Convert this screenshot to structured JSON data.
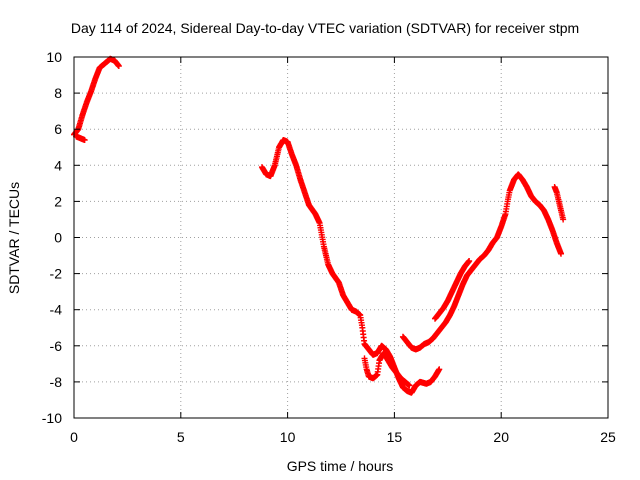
{
  "chart_data": {
    "type": "scatter",
    "title": "Day 114 of 2024, Sidereal Day-to-day VTEC variation (SDTVAR) for receiver stpm",
    "xlabel": "GPS time / hours",
    "ylabel": "SDTVAR / TECUs",
    "xlim": [
      0,
      25
    ],
    "ylim": [
      -10,
      10
    ],
    "xticks": [
      0,
      5,
      10,
      15,
      20,
      25
    ],
    "yticks": [
      -10,
      -8,
      -6,
      -4,
      -2,
      0,
      2,
      4,
      6,
      8,
      10
    ],
    "grid": true,
    "marker": "plus",
    "series": [
      {
        "name": "SDTVAR",
        "color": "#ff0000",
        "segments": [
          [
            [
              0.0,
              5.7
            ],
            [
              0.2,
              6.0
            ],
            [
              0.4,
              6.8
            ],
            [
              0.6,
              7.5
            ],
            [
              0.8,
              8.1
            ],
            [
              1.0,
              8.8
            ],
            [
              1.2,
              9.4
            ],
            [
              1.5,
              9.7
            ],
            [
              1.7,
              9.9
            ],
            [
              1.9,
              9.8
            ],
            [
              2.1,
              9.5
            ]
          ],
          [
            [
              0.1,
              5.6
            ],
            [
              0.3,
              5.5
            ],
            [
              0.5,
              5.4
            ]
          ],
          [
            [
              8.8,
              3.9
            ],
            [
              9.0,
              3.5
            ],
            [
              9.2,
              3.4
            ],
            [
              9.4,
              4.0
            ],
            [
              9.6,
              5.0
            ],
            [
              9.8,
              5.4
            ],
            [
              10.0,
              5.3
            ],
            [
              10.2,
              4.6
            ],
            [
              10.4,
              4.0
            ],
            [
              10.6,
              3.2
            ],
            [
              10.8,
              2.5
            ],
            [
              11.0,
              1.8
            ],
            [
              11.3,
              1.3
            ],
            [
              11.5,
              0.8
            ],
            [
              11.7,
              -0.5
            ],
            [
              11.9,
              -1.5
            ],
            [
              12.1,
              -2.0
            ],
            [
              12.4,
              -2.5
            ],
            [
              12.6,
              -3.2
            ],
            [
              12.8,
              -3.6
            ],
            [
              13.0,
              -4.0
            ],
            [
              13.2,
              -4.1
            ],
            [
              13.4,
              -4.3
            ],
            [
              13.5,
              -5.0
            ],
            [
              13.6,
              -5.9
            ],
            [
              13.8,
              -6.2
            ],
            [
              14.0,
              -6.5
            ],
            [
              14.2,
              -6.4
            ],
            [
              14.4,
              -6.0
            ],
            [
              14.6,
              -6.2
            ],
            [
              14.8,
              -6.6
            ],
            [
              15.0,
              -7.2
            ],
            [
              15.2,
              -7.8
            ],
            [
              15.4,
              -8.3
            ],
            [
              15.6,
              -8.5
            ],
            [
              15.8,
              -8.6
            ],
            [
              16.0,
              -8.2
            ],
            [
              16.2,
              -8.0
            ],
            [
              16.5,
              -8.1
            ],
            [
              16.7,
              -8.0
            ],
            [
              16.9,
              -7.7
            ],
            [
              17.1,
              -7.3
            ]
          ],
          [
            [
              13.6,
              -6.7
            ],
            [
              13.7,
              -7.3
            ],
            [
              13.8,
              -7.7
            ],
            [
              14.0,
              -7.8
            ],
            [
              14.2,
              -7.6
            ],
            [
              14.3,
              -6.8
            ],
            [
              14.5,
              -6.4
            ],
            [
              14.7,
              -6.8
            ],
            [
              14.9,
              -7.2
            ],
            [
              15.1,
              -7.5
            ],
            [
              15.3,
              -7.8
            ],
            [
              15.5,
              -8.0
            ],
            [
              15.7,
              -8.2
            ]
          ],
          [
            [
              15.4,
              -5.5
            ],
            [
              15.6,
              -5.8
            ],
            [
              15.8,
              -6.1
            ],
            [
              16.0,
              -6.2
            ],
            [
              16.2,
              -6.1
            ],
            [
              16.4,
              -5.9
            ],
            [
              16.6,
              -5.8
            ],
            [
              16.8,
              -5.6
            ],
            [
              17.0,
              -5.3
            ],
            [
              17.2,
              -5.0
            ],
            [
              17.4,
              -4.7
            ],
            [
              17.6,
              -4.3
            ],
            [
              17.8,
              -3.8
            ],
            [
              18.0,
              -3.2
            ],
            [
              18.2,
              -2.6
            ],
            [
              18.4,
              -2.1
            ],
            [
              18.6,
              -1.8
            ],
            [
              18.8,
              -1.5
            ],
            [
              19.0,
              -1.2
            ],
            [
              19.2,
              -1.0
            ],
            [
              19.4,
              -0.7
            ],
            [
              19.6,
              -0.3
            ],
            [
              19.8,
              0.0
            ],
            [
              20.0,
              0.6
            ],
            [
              20.2,
              1.3
            ],
            [
              20.3,
              2.0
            ],
            [
              20.4,
              2.6
            ],
            [
              20.6,
              3.2
            ],
            [
              20.8,
              3.5
            ],
            [
              21.0,
              3.2
            ],
            [
              21.2,
              2.8
            ],
            [
              21.4,
              2.3
            ],
            [
              21.6,
              2.0
            ],
            [
              21.8,
              1.8
            ],
            [
              22.0,
              1.5
            ],
            [
              22.2,
              1.0
            ],
            [
              22.4,
              0.4
            ],
            [
              22.6,
              -0.3
            ],
            [
              22.8,
              -0.9
            ]
          ],
          [
            [
              16.9,
              -4.5
            ],
            [
              17.1,
              -4.2
            ],
            [
              17.3,
              -3.9
            ],
            [
              17.5,
              -3.5
            ],
            [
              17.7,
              -3.0
            ],
            [
              17.9,
              -2.5
            ],
            [
              18.1,
              -2.0
            ],
            [
              18.3,
              -1.6
            ],
            [
              18.5,
              -1.3
            ]
          ],
          [
            [
              22.5,
              2.8
            ],
            [
              22.6,
              2.5
            ],
            [
              22.7,
              2.0
            ],
            [
              22.8,
              1.5
            ],
            [
              22.9,
              1.0
            ]
          ]
        ]
      }
    ]
  }
}
